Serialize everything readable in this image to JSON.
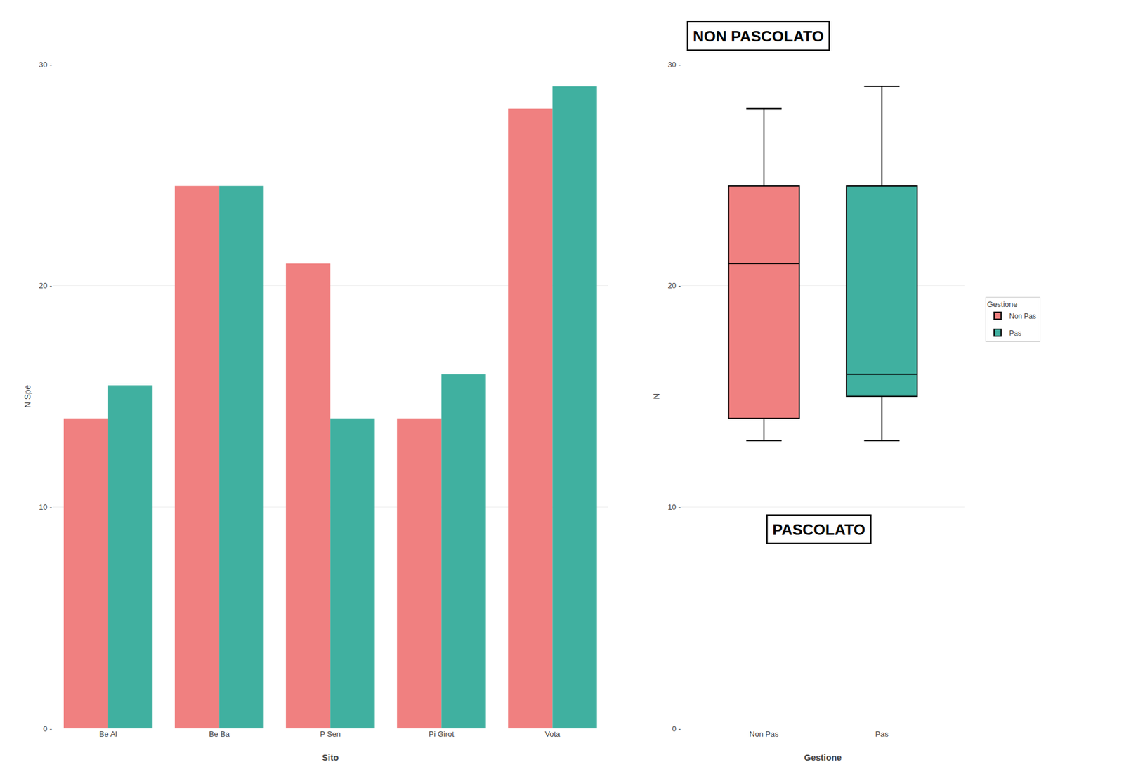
{
  "chart_data": [
    {
      "type": "bar",
      "categories": [
        "Be Al",
        "Be Ba",
        "P Sen",
        "Pi Girot",
        "Vota"
      ],
      "series": [
        {
          "name": "Non Pas",
          "color": "#F08080",
          "values": [
            14,
            24.5,
            21,
            14,
            28
          ]
        },
        {
          "name": "Pas",
          "color": "#40B0A0",
          "values": [
            15.5,
            24.5,
            14,
            16,
            29
          ]
        }
      ],
      "xlabel": "Sito",
      "ylabel": "N Spe",
      "ylim": [
        0,
        30
      ],
      "yticks": [
        {
          "value": 0,
          "label": "0 -"
        },
        {
          "value": 10,
          "label": "10 -"
        },
        {
          "value": 20,
          "label": "20 -"
        },
        {
          "value": 30,
          "label": "30 -"
        }
      ],
      "grid": true
    },
    {
      "type": "box",
      "categories": [
        "Non Pas",
        "Pas"
      ],
      "series": [
        {
          "name": "Non Pas",
          "color": "#F08080",
          "whislo": 13.0,
          "q1": 14.0,
          "med": 21.0,
          "q3": 24.5,
          "whishi": 28.0
        },
        {
          "name": "Pas",
          "color": "#40B0A0",
          "whislo": 13.0,
          "q1": 15.0,
          "med": 16.0,
          "q3": 24.5,
          "whishi": 29.0
        }
      ],
      "xlabel": "Gestione",
      "ylabel": "N",
      "ylim": [
        0,
        30
      ],
      "yticks": [
        {
          "value": 0,
          "label": "0 -"
        },
        {
          "value": 10,
          "label": "10 -"
        },
        {
          "value": 20,
          "label": "20 -"
        },
        {
          "value": 30,
          "label": "30 -"
        }
      ],
      "grid": true,
      "legend": "right",
      "legend_title": "Gestione",
      "annotations": [
        "NON PASCOLATO",
        "PASCOLATO"
      ]
    }
  ]
}
